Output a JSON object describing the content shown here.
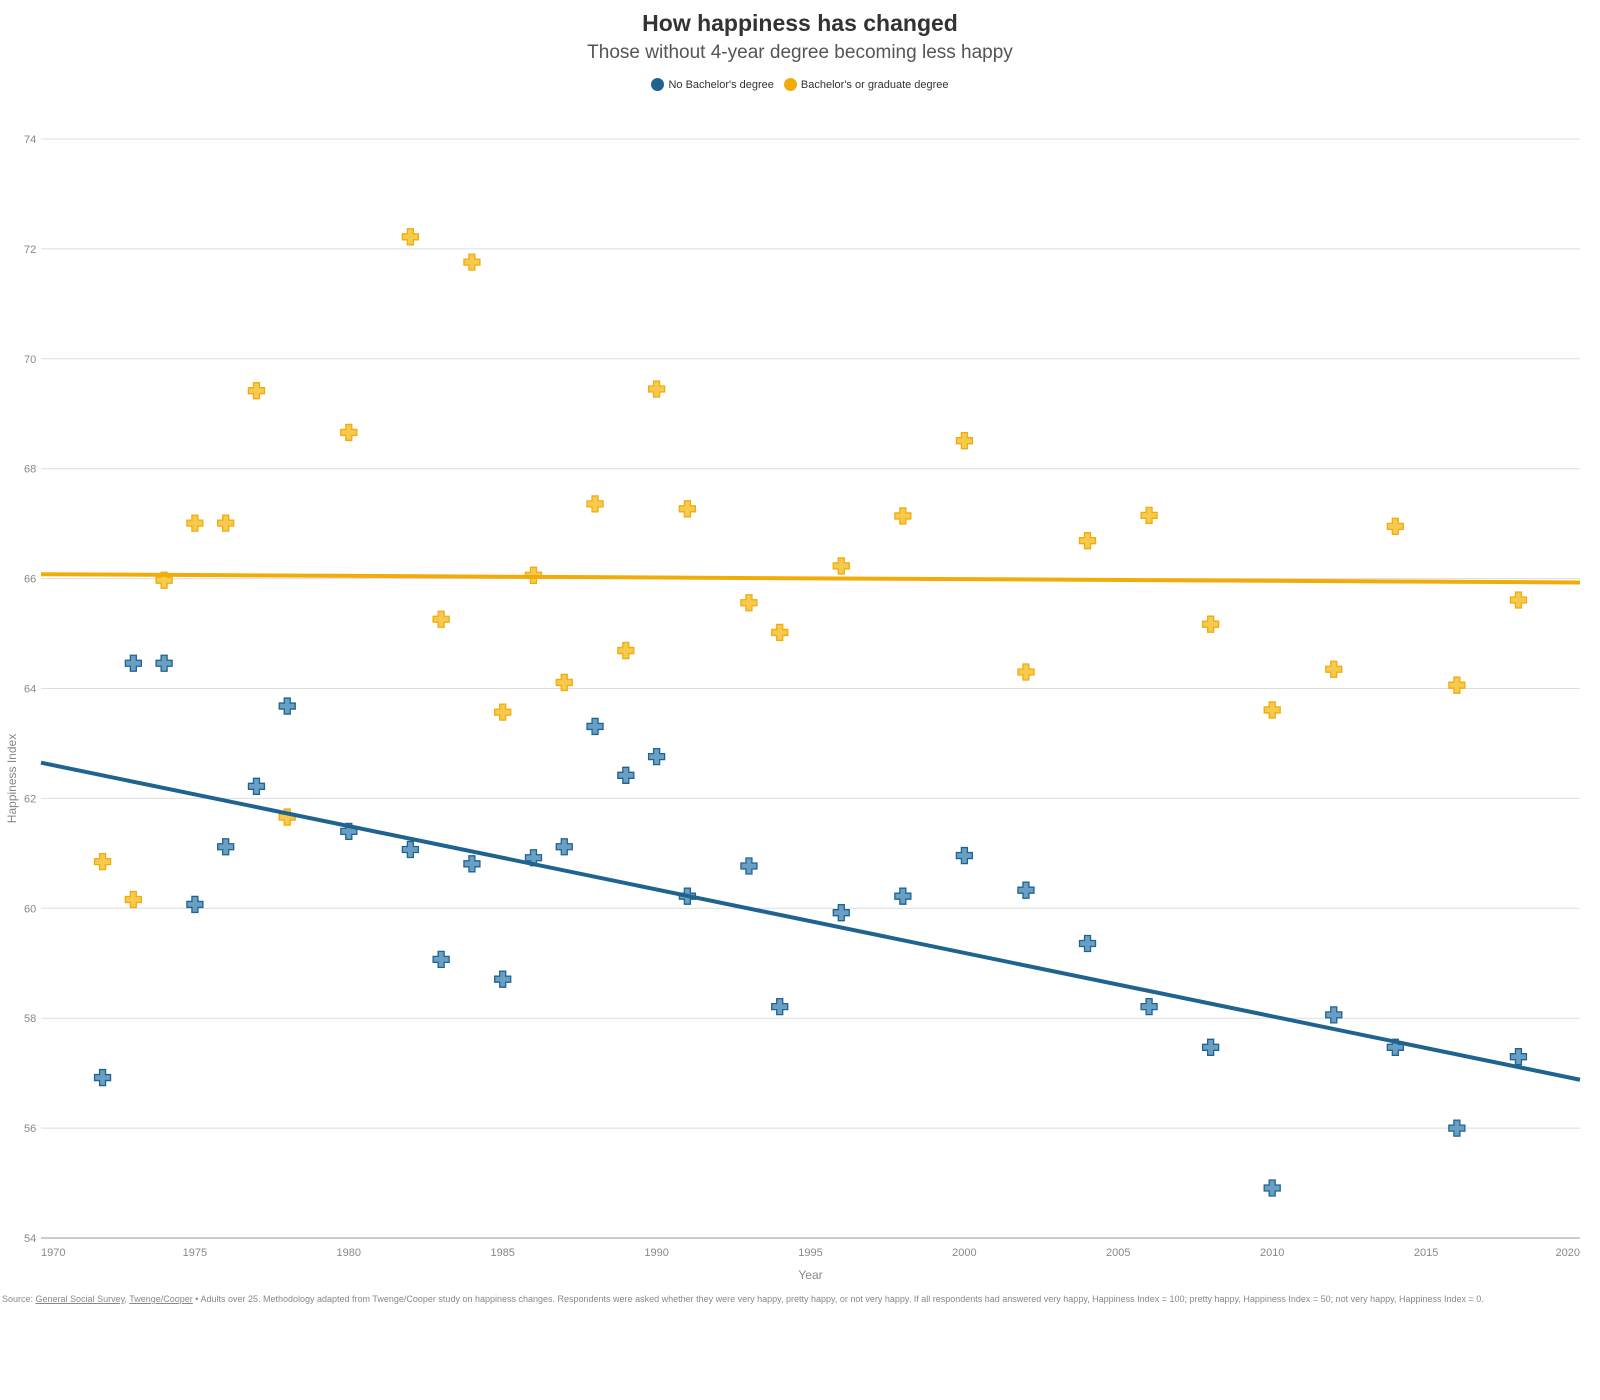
{
  "chart_data": {
    "type": "scatter",
    "title": "How happiness has changed",
    "subtitle": "Those without 4-year degree becoming less happy",
    "xlabel": "Year",
    "ylabel": "Happiness Index",
    "xlim": [
      1970,
      2020
    ],
    "ylim": [
      54,
      74
    ],
    "xticks": [
      1970,
      1975,
      1980,
      1985,
      1990,
      1995,
      2000,
      2005,
      2010,
      2015,
      2020
    ],
    "yticks": [
      54,
      56,
      58,
      60,
      62,
      64,
      66,
      68,
      70,
      72,
      74
    ],
    "grid": "horizontal",
    "legend_placement": "top",
    "marker": "plus",
    "series": [
      {
        "name": "No Bachelor's degree",
        "color": "#1f6391",
        "x": [
          1972,
          1973,
          1974,
          1975,
          1976,
          1977,
          1978,
          1980,
          1982,
          1983,
          1984,
          1985,
          1986,
          1987,
          1988,
          1989,
          1990,
          1991,
          1993,
          1994,
          1996,
          1998,
          2000,
          2002,
          2004,
          2006,
          2008,
          2010,
          2012,
          2014,
          2016,
          2018
        ],
        "y": [
          56.92,
          64.46,
          64.46,
          60.07,
          61.12,
          62.22,
          63.68,
          61.4,
          61.07,
          59.07,
          60.81,
          58.71,
          60.92,
          61.12,
          63.31,
          62.42,
          62.76,
          60.22,
          60.77,
          58.21,
          59.92,
          60.22,
          60.96,
          60.33,
          59.36,
          58.21,
          57.47,
          54.91,
          58.06,
          57.47,
          56.0,
          57.3
        ],
        "trend": {
          "x": [
            1970,
            2020
          ],
          "y": [
            62.65,
            56.88
          ]
        }
      },
      {
        "name": "Bachelor's or graduate degree",
        "color": "#f0ad0a",
        "x": [
          1972,
          1973,
          1974,
          1975,
          1976,
          1977,
          1978,
          1980,
          1982,
          1983,
          1984,
          1985,
          1986,
          1987,
          1988,
          1989,
          1990,
          1991,
          1993,
          1994,
          1996,
          1998,
          2000,
          2002,
          2004,
          2006,
          2008,
          2010,
          2012,
          2014,
          2016,
          2018
        ],
        "y": [
          60.85,
          60.16,
          65.97,
          67.01,
          67.01,
          69.42,
          61.66,
          68.66,
          72.22,
          65.26,
          71.76,
          63.57,
          66.06,
          64.11,
          67.36,
          64.69,
          69.45,
          67.27,
          65.56,
          65.02,
          66.23,
          67.14,
          68.51,
          64.3,
          66.69,
          67.15,
          65.17,
          63.61,
          64.35,
          66.95,
          64.06,
          65.61
        ],
        "trend": {
          "x": [
            1970,
            2020
          ],
          "y": [
            66.08,
            65.93
          ]
        }
      }
    ]
  },
  "source": {
    "prefix": "Source: ",
    "link1": "General Social Survey",
    "sep": ", ",
    "link2": "Twenge/Cooper",
    "note": " • Adults over 25. Methodology adapted from Twenge/Cooper study on happiness changes. Respondents were asked whether they were very happy, pretty happy, or not very happy. If all respondents had answered very happy, Happiness Index = 100; pretty happy, Happiness Index = 50; not very happy, Happiness Index = 0."
  }
}
